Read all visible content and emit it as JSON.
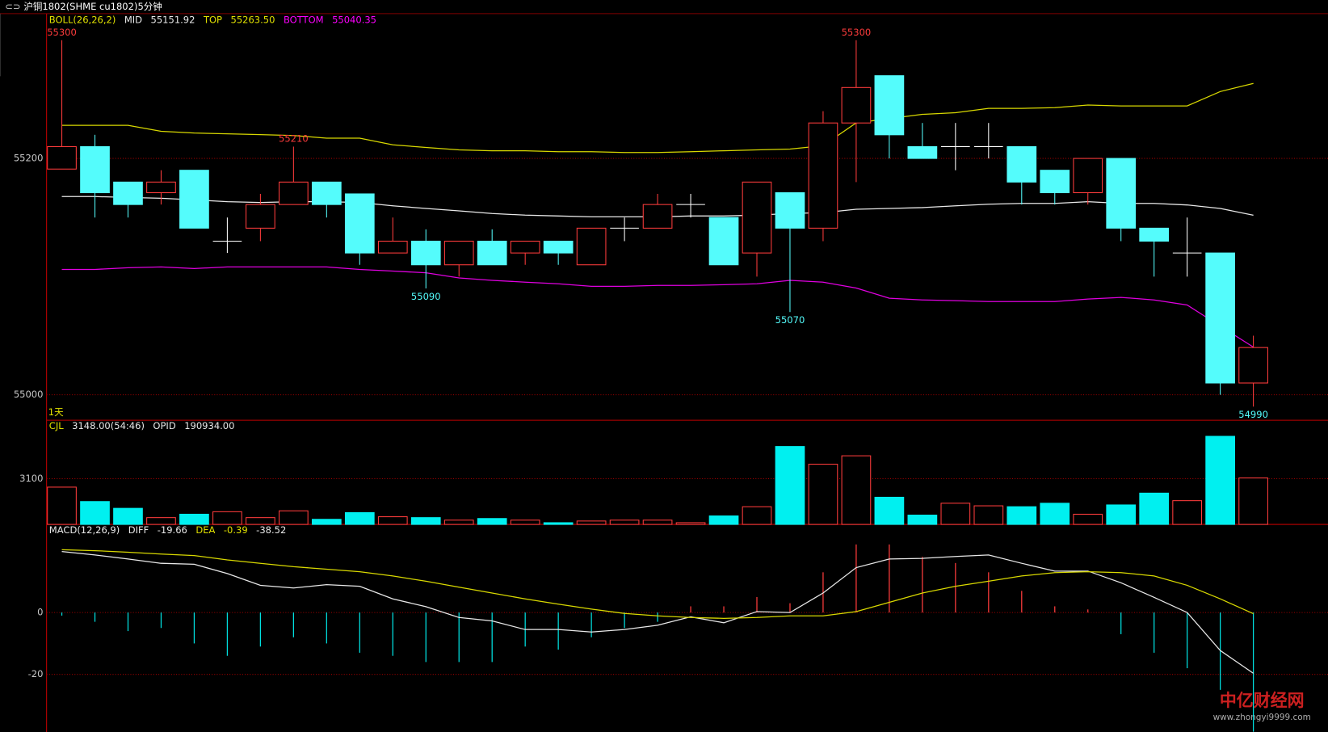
{
  "window_title": "沪铜1802(SHME cu1802)5分钟",
  "watermark": {
    "title": "中亿财经网",
    "url": "www.zhongyi9999.com"
  },
  "chart_data": [
    {
      "type": "candlestick",
      "header": [
        {
          "text": "BOLL(26,26,2)",
          "color": "#e0e000"
        },
        {
          "text": "MID",
          "color": "#e8e8e8"
        },
        {
          "text": "55151.92",
          "color": "#e8e8e8"
        },
        {
          "text": "TOP",
          "color": "#e0e000"
        },
        {
          "text": "55263.50",
          "color": "#e0e000"
        },
        {
          "text": "BOTTOM",
          "color": "#ff00ff"
        },
        {
          "text": "55040.35",
          "color": "#ff00ff"
        }
      ],
      "period_label": "1天",
      "categories": [
        null,
        null,
        null,
        null,
        null,
        null,
        null,
        null,
        null,
        null,
        null,
        null,
        null,
        null,
        null,
        null,
        null,
        null,
        null,
        null,
        null,
        null,
        null,
        null,
        null,
        null,
        null,
        null,
        null,
        null,
        null,
        null,
        null,
        null,
        null,
        null,
        null
      ],
      "open": [
        55191,
        55210,
        55180,
        55171,
        55190,
        55130,
        55141,
        55161,
        55180,
        55170,
        55120,
        55130,
        55110,
        55130,
        55120,
        55130,
        55110,
        55141,
        55141,
        55161,
        55150,
        55120,
        55171,
        55141,
        55230,
        55270,
        55210,
        55210,
        55210,
        55210,
        55190,
        55171,
        55200,
        55141,
        55120,
        55120,
        55010
      ],
      "high": [
        55300,
        55220,
        55180,
        55190,
        55190,
        55150,
        55170,
        55210,
        55180,
        55170,
        55150,
        55140,
        55130,
        55140,
        55130,
        55130,
        55141,
        55150,
        55170,
        55170,
        55150,
        55180,
        55171,
        55240,
        55300,
        55270,
        55230,
        55230,
        55230,
        55210,
        55190,
        55200,
        55200,
        55141,
        55150,
        55120,
        55050
      ],
      "low": [
        55191,
        55150,
        55150,
        55161,
        55141,
        55120,
        55130,
        55161,
        55150,
        55110,
        55120,
        55090,
        55100,
        55110,
        55110,
        55110,
        55110,
        55130,
        55141,
        55150,
        55110,
        55100,
        55070,
        55130,
        55180,
        55200,
        55200,
        55190,
        55200,
        55161,
        55161,
        55161,
        55130,
        55100,
        55100,
        55000,
        54990
      ],
      "close": [
        55210,
        55171,
        55161,
        55180,
        55141,
        55130,
        55161,
        55180,
        55161,
        55120,
        55130,
        55110,
        55130,
        55110,
        55130,
        55120,
        55141,
        55141,
        55161,
        55161,
        55110,
        55180,
        55141,
        55230,
        55260,
        55220,
        55200,
        55210,
        55210,
        55180,
        55171,
        55200,
        55141,
        55130,
        55120,
        55010,
        55040
      ],
      "up_color": "#ff3c3c",
      "down_color": "#54fcfc",
      "flat_color": "#ffffff",
      "series": [
        {
          "color": "#e8e8e8",
          "values": [
            55167.7,
            55167.7,
            55167.0,
            55166.3,
            55164.9,
            55163.4,
            55162.7,
            55163.4,
            55163.4,
            55162.7,
            55159.9,
            55157.7,
            55155.6,
            55153.4,
            55152.0,
            55151.3,
            55150.6,
            55150.6,
            55150.6,
            55151.3,
            55151.3,
            55152.0,
            55153.4,
            55154.1,
            55157.0,
            55157.7,
            55158.4,
            55159.9,
            55161.3,
            55162.0,
            55162.0,
            55163.4,
            55162.0,
            55162.0,
            55160.6,
            55157.7,
            55151.92
          ]
        },
        {
          "color": "#d8d800",
          "values": [
            55228.0,
            55228.0,
            55228.0,
            55223.0,
            55221.5,
            55220.8,
            55220.1,
            55219.4,
            55217.2,
            55217.2,
            55211.5,
            55209.3,
            55207.2,
            55206.5,
            55206.5,
            55205.7,
            55205.7,
            55205.0,
            55205.0,
            55205.7,
            55206.5,
            55207.2,
            55207.9,
            55210.8,
            55230.1,
            55233.7,
            55237.3,
            55238.7,
            55242.3,
            55242.3,
            55243.0,
            55245.2,
            55244.4,
            55244.4,
            55244.4,
            55256.6,
            55263.5
          ]
        },
        {
          "color": "#e000e0",
          "values": [
            55106.1,
            55106.1,
            55107.5,
            55108.2,
            55106.8,
            55108.2,
            55108.2,
            55108.2,
            55108.2,
            55106.1,
            55104.7,
            55103.2,
            55098.9,
            55096.8,
            55095.3,
            55093.9,
            55091.8,
            55091.8,
            55092.5,
            55092.5,
            55093.2,
            55093.9,
            55096.8,
            55095.3,
            55090.3,
            55081.7,
            55080.3,
            55079.6,
            55078.9,
            55078.9,
            55078.9,
            55081.0,
            55082.4,
            55080.3,
            55076.0,
            55058.1,
            55040.35
          ]
        }
      ],
      "annotations": [
        {
          "index": 0,
          "value": 55300,
          "pos": "high"
        },
        {
          "index": 7,
          "value": 55210,
          "pos": "high"
        },
        {
          "index": 11,
          "value": 55090,
          "pos": "low"
        },
        {
          "index": 22,
          "value": 55070,
          "pos": "low"
        },
        {
          "index": 24,
          "value": 55300,
          "pos": "high"
        },
        {
          "index": 36,
          "value": 54990,
          "pos": "low"
        }
      ],
      "ylim": [
        54978.5,
        55321.1
      ],
      "yticks": [
        55000,
        55200
      ],
      "grid": true
    },
    {
      "type": "bar",
      "header": [
        {
          "text": "CJL",
          "color": "#e0e000"
        },
        {
          "text": "3148.00(54:46)",
          "color": "#e8e8e8"
        },
        {
          "text": "OPID",
          "color": "#e8e8e8"
        },
        {
          "text": "190934.00",
          "color": "#e8e8e8"
        }
      ],
      "values": [
        2526,
        1550,
        1090,
        460,
        690,
        860,
        460,
        920,
        345,
        800,
        520,
        460,
        290,
        400,
        290,
        115,
        230,
        290,
        290,
        115,
        575,
        1200,
        5280,
        4080,
        4650,
        1840,
        630,
        1435,
        1260,
        1200,
        1435,
        690,
        1320,
        2120,
        1610,
        5970,
        3148
      ],
      "up_color": "#ff3c3c",
      "down_color": "#00f0f0",
      "ylim": [
        0,
        7004
      ],
      "yticks": [
        3100
      ],
      "grid": true
    },
    {
      "type": "line",
      "header": [
        {
          "text": "MACD(12,26,9)",
          "color": "#e8e8e8"
        },
        {
          "text": "DIFF",
          "color": "#e8e8e8"
        },
        {
          "text": "-19.66",
          "color": "#e8e8e8"
        },
        {
          "text": "DEA",
          "color": "#e0e000"
        },
        {
          "text": "-0.39",
          "color": "#e0e000"
        },
        {
          "text": "-38.52",
          "color": "#e8e8e8"
        }
      ],
      "series": [
        {
          "style": "histogram",
          "up_color": "#ff3c3c",
          "down_color": "#00e0e0",
          "values": [
            -1,
            -3,
            -6,
            -5,
            -10,
            -14,
            -11,
            -8,
            -10,
            -13,
            -14,
            -16,
            -16,
            -16,
            -11,
            -12,
            -8,
            -5,
            -3,
            2,
            2,
            5,
            3,
            13,
            22,
            22,
            18,
            16,
            13,
            7,
            2,
            1,
            -7,
            -13,
            -18,
            -25,
            -38.52
          ]
        },
        {
          "style": "line",
          "color": "#e8e8e8",
          "values": [
            19.7,
            18.6,
            17.3,
            15.9,
            15.6,
            12.6,
            8.8,
            7.9,
            9.0,
            8.5,
            4.4,
            1.9,
            -1.6,
            -2.7,
            -5.5,
            -5.5,
            -6.3,
            -5.5,
            -4.1,
            -1.4,
            -3.3,
            0.3,
            0.0,
            6.3,
            14.5,
            17.3,
            17.5,
            18.1,
            18.6,
            15.9,
            13.4,
            13.4,
            9.6,
            4.9,
            0.0,
            -12.3,
            -19.66
          ]
        },
        {
          "style": "line",
          "color": "#d8d800",
          "values": [
            20.3,
            20.0,
            19.5,
            18.9,
            18.4,
            17.0,
            15.9,
            14.8,
            14.0,
            13.2,
            11.8,
            10.1,
            8.2,
            6.3,
            4.4,
            2.7,
            1.1,
            -0.3,
            -1.1,
            -1.6,
            -1.9,
            -1.6,
            -1.1,
            -1.1,
            0.3,
            3.3,
            6.3,
            8.5,
            10.1,
            11.8,
            12.9,
            13.2,
            12.9,
            11.8,
            8.8,
            4.4,
            -0.39
          ]
        }
      ],
      "ylim": [
        -38.6,
        28.2
      ],
      "yticks": [
        -20,
        0
      ],
      "grid": true
    }
  ]
}
